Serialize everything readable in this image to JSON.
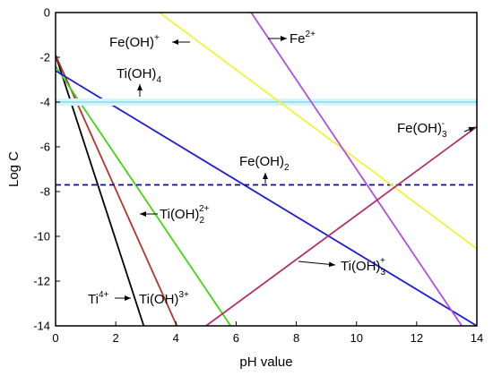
{
  "chart_data": {
    "type": "line",
    "title": "",
    "xlabel": "pH value",
    "ylabel": "Log C",
    "xlim": [
      0,
      14
    ],
    "ylim": [
      -14,
      0
    ],
    "x_ticks": [
      0,
      2,
      4,
      6,
      8,
      10,
      12,
      14
    ],
    "y_ticks": [
      0,
      -2,
      -4,
      -6,
      -8,
      -10,
      -12,
      -14
    ],
    "grid": false,
    "legend": "none",
    "series": [
      {
        "name": "Ti4+",
        "color": "#000000",
        "x": [
          0,
          2.93
        ],
        "y": [
          -1.9,
          -14
        ]
      },
      {
        "name": "Ti(OH)3+",
        "color": "#b5342a",
        "x": [
          0,
          4.03
        ],
        "y": [
          -1.9,
          -14
        ]
      },
      {
        "name": "Ti(OH)2 2+",
        "color": "#44d416",
        "x": [
          0,
          5.82
        ],
        "y": [
          -2.4,
          -14
        ]
      },
      {
        "name": "Ti(OH)3 +",
        "color": "#1c1cd6",
        "x": [
          0,
          14.0
        ],
        "y": [
          -2.6,
          -14
        ]
      },
      {
        "name": "Ti(OH)4",
        "color": "#8ee6f5",
        "x": [
          0,
          14.0
        ],
        "y": [
          -4.0,
          -4.0
        ]
      },
      {
        "name": "Fe(OH)2",
        "color": "#0d0d80",
        "dashed": true,
        "x": [
          0,
          14.0
        ],
        "y": [
          -7.7,
          -7.7
        ]
      },
      {
        "name": "Fe(OH)+",
        "color": "#f2f23a",
        "x": [
          3.45,
          14.0
        ],
        "y": [
          0,
          -10.55
        ]
      },
      {
        "name": "Fe2+",
        "color": "#b44de0",
        "x": [
          6.5,
          13.5
        ],
        "y": [
          0,
          -14
        ]
      },
      {
        "name": "Fe(OH)3-",
        "color": "#b0306e",
        "x": [
          5.0,
          14.0
        ],
        "y": [
          -14,
          -5.1
        ]
      }
    ],
    "annotations": [
      {
        "id": "fe-oh-plus",
        "base": "Fe(OH)",
        "sub": "",
        "sup": "+"
      },
      {
        "id": "fe-2plus",
        "base": "Fe",
        "sub": "",
        "sup": "2+"
      },
      {
        "id": "ti-oh-4",
        "base": "Ti(OH)",
        "sub": "4",
        "sup": ""
      },
      {
        "id": "fe-oh-3-minus",
        "base": "Fe(OH)",
        "sub": "3",
        "sup": "-"
      },
      {
        "id": "fe-oh-2",
        "base": "Fe(OH)",
        "sub": "2",
        "sup": ""
      },
      {
        "id": "ti-oh-2-2plus",
        "base": "Ti(OH)",
        "sub": "2",
        "sup": "2+"
      },
      {
        "id": "ti-oh-3-plus",
        "base": "Ti(OH)",
        "sub": "3",
        "sup": "+"
      },
      {
        "id": "ti-4plus",
        "base": "Ti",
        "sub": "",
        "sup": "4+"
      },
      {
        "id": "ti-oh-3plus",
        "base": "Ti(OH)",
        "sub": "",
        "sup": "3+"
      }
    ]
  }
}
